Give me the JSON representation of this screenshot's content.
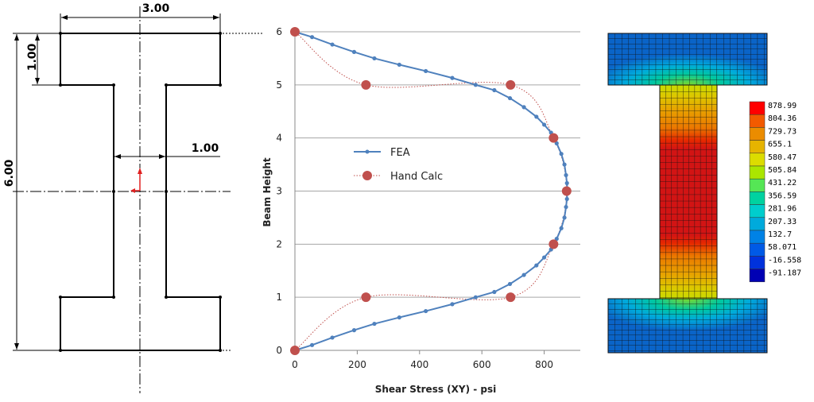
{
  "drawing": {
    "dim_top": "3.00",
    "dim_flange": "1.00",
    "dim_web": "1.00",
    "dim_height": "6.00"
  },
  "chart_data": {
    "type": "line",
    "xlabel": "Shear Stress (XY) - psi",
    "ylabel": "Beam Height",
    "xlim": [
      0,
      900
    ],
    "ylim": [
      0,
      6
    ],
    "x_ticks": [
      "0",
      "200",
      "400",
      "600",
      "800"
    ],
    "y_ticks": [
      "0",
      "1",
      "2",
      "3",
      "4",
      "5",
      "6"
    ],
    "grid": "horizontal",
    "legend_placement": "center-left",
    "series": [
      {
        "name": "FEA",
        "color": "#4F81BD",
        "style": "solid-line-with-small-markers",
        "points": [
          [
            0,
            0
          ],
          [
            55,
            0.1
          ],
          [
            120,
            0.24
          ],
          [
            190,
            0.38
          ],
          [
            255,
            0.5
          ],
          [
            335,
            0.62
          ],
          [
            420,
            0.74
          ],
          [
            505,
            0.87
          ],
          [
            580,
            1.0
          ],
          [
            640,
            1.1
          ],
          [
            690,
            1.25
          ],
          [
            735,
            1.42
          ],
          [
            775,
            1.6
          ],
          [
            800,
            1.75
          ],
          [
            822,
            1.9
          ],
          [
            840,
            2.1
          ],
          [
            855,
            2.3
          ],
          [
            865,
            2.5
          ],
          [
            870,
            2.7
          ],
          [
            873,
            2.85
          ],
          [
            874,
            3.0
          ],
          [
            873,
            3.15
          ],
          [
            870,
            3.3
          ],
          [
            865,
            3.5
          ],
          [
            855,
            3.7
          ],
          [
            840,
            3.9
          ],
          [
            822,
            4.1
          ],
          [
            800,
            4.25
          ],
          [
            775,
            4.4
          ],
          [
            735,
            4.58
          ],
          [
            690,
            4.75
          ],
          [
            640,
            4.9
          ],
          [
            580,
            5.0
          ],
          [
            505,
            5.13
          ],
          [
            420,
            5.26
          ],
          [
            335,
            5.38
          ],
          [
            255,
            5.5
          ],
          [
            190,
            5.62
          ],
          [
            120,
            5.76
          ],
          [
            55,
            5.9
          ],
          [
            0,
            6.0
          ]
        ]
      },
      {
        "name": "Hand Calc",
        "color": "#C0504D",
        "style": "dotted-line-with-large-markers",
        "points": [
          [
            0,
            0
          ],
          [
            228,
            1.0
          ],
          [
            692,
            1.0
          ],
          [
            830,
            2.0
          ],
          [
            872,
            3.0
          ],
          [
            830,
            4.0
          ],
          [
            692,
            5.0
          ],
          [
            228,
            5.0
          ],
          [
            0,
            6.0
          ]
        ]
      }
    ]
  },
  "contour": {
    "legend_values": [
      "878.99",
      "804.36",
      "729.73",
      "655.1",
      "580.47",
      "505.84",
      "431.22",
      "356.59",
      "281.96",
      "207.33",
      "132.7",
      "58.071",
      "-16.558",
      "-91.187"
    ],
    "legend_colors": [
      "#FF0000",
      "#F25A00",
      "#EB8C00",
      "#E6B400",
      "#DCDC00",
      "#AAE600",
      "#55E655",
      "#00D2A0",
      "#00CDCD",
      "#00AADC",
      "#0082E6",
      "#005AE6",
      "#0032DC",
      "#0000B4"
    ]
  }
}
